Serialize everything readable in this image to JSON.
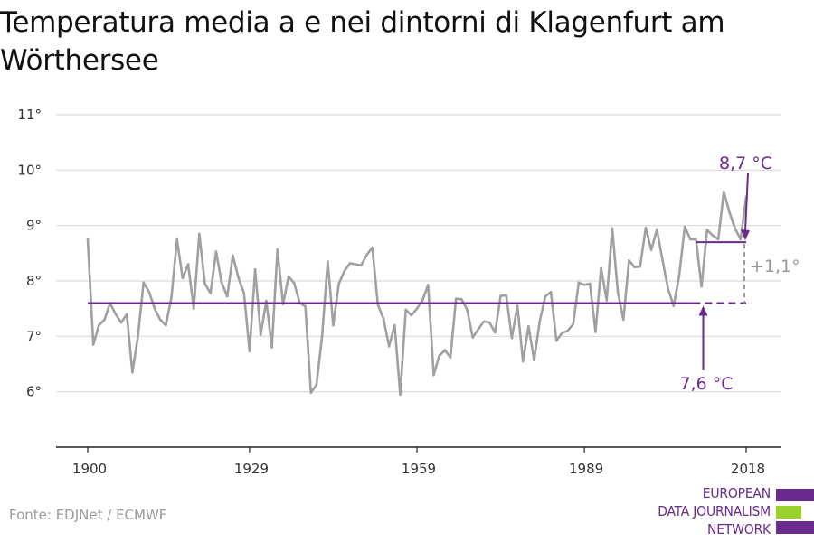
{
  "title": "Temperatura media a e nei dintorni di Klagenfurt am Wörthersee",
  "source": "Fonte: EDJNet / ECMWF",
  "logo": {
    "lines": [
      "EUROPEAN",
      "DATA JOURNALISM",
      "NETWORK"
    ],
    "colors": {
      "purple": "#6a2a8e",
      "green": "#9bd12c"
    }
  },
  "colors": {
    "series": "#a0a0a0",
    "baseline": "#6a2a8e",
    "delta": "#9a9a9a",
    "grid": "#d9d9d9"
  },
  "chart_data": {
    "type": "line",
    "x": [
      1900,
      1901,
      1902,
      1903,
      1904,
      1905,
      1906,
      1907,
      1908,
      1909,
      1910,
      1911,
      1912,
      1913,
      1914,
      1915,
      1916,
      1917,
      1918,
      1919,
      1920,
      1921,
      1922,
      1923,
      1924,
      1925,
      1926,
      1927,
      1928,
      1929,
      1930,
      1931,
      1932,
      1933,
      1934,
      1935,
      1936,
      1937,
      1938,
      1939,
      1940,
      1941,
      1942,
      1943,
      1944,
      1945,
      1946,
      1947,
      1948,
      1949,
      1950,
      1951,
      1952,
      1953,
      1954,
      1955,
      1956,
      1957,
      1958,
      1959,
      1960,
      1961,
      1962,
      1963,
      1964,
      1965,
      1966,
      1967,
      1968,
      1969,
      1970,
      1971,
      1972,
      1973,
      1974,
      1975,
      1976,
      1977,
      1978,
      1979,
      1980,
      1981,
      1982,
      1983,
      1984,
      1985,
      1986,
      1987,
      1988,
      1989,
      1990,
      1991,
      1992,
      1993,
      1994,
      1995,
      1996,
      1997,
      1998,
      1999,
      2000,
      2001,
      2002,
      2003,
      2004,
      2005,
      2006,
      2007,
      2008,
      2009,
      2010,
      2011,
      2012,
      2013,
      2014,
      2015,
      2016,
      2017,
      2018
    ],
    "series": [
      {
        "values": [
          8.75,
          6.85,
          7.2,
          7.3,
          7.6,
          7.4,
          7.25,
          7.4,
          6.35,
          7.0,
          7.97,
          7.8,
          7.5,
          7.3,
          7.2,
          7.7,
          8.75,
          8.05,
          8.3,
          7.5,
          8.85,
          7.95,
          7.78,
          8.53,
          7.97,
          7.72,
          8.46,
          8.06,
          7.78,
          6.73,
          8.21,
          7.03,
          7.64,
          6.8,
          8.57,
          7.58,
          8.08,
          7.96,
          7.6,
          7.54,
          5.98,
          6.13,
          7.0,
          8.35,
          7.2,
          7.95,
          8.18,
          8.32,
          8.3,
          8.28,
          8.47,
          8.6,
          7.57,
          7.32,
          6.82,
          7.2,
          5.95,
          7.48,
          7.38,
          7.5,
          7.65,
          7.93,
          6.3,
          6.65,
          6.75,
          6.62,
          7.68,
          7.67,
          7.48,
          6.98,
          7.13,
          7.27,
          7.25,
          7.07,
          7.73,
          7.74,
          6.97,
          7.55,
          6.55,
          7.18,
          6.57,
          7.27,
          7.72,
          7.8,
          6.92,
          7.06,
          7.1,
          7.22,
          7.97,
          7.93,
          7.95,
          7.08,
          8.23,
          7.65,
          8.95,
          7.8,
          7.3,
          8.37,
          8.25,
          8.26,
          8.96,
          8.56,
          8.93,
          8.38,
          7.86,
          7.55,
          8.1,
          8.98,
          8.75,
          8.75,
          7.9,
          8.92,
          8.82,
          8.75,
          9.61,
          9.24,
          8.95,
          8.75,
          9.52
        ]
      }
    ],
    "baseline": {
      "label": "7,6 °C",
      "value": 7.6
    },
    "recent": {
      "label": "8,7 °C",
      "value": 8.7
    },
    "delta_label": "+1,1°",
    "y_ticks": [
      6,
      7,
      8,
      9,
      10,
      11
    ],
    "y_tick_labels": [
      "6°",
      "7°",
      "8°",
      "9°",
      "10°",
      "11°"
    ],
    "x_ticks": [
      1900,
      1929,
      1959,
      1989,
      2018
    ],
    "x_tick_labels": [
      "1900",
      "1929",
      "1959",
      "1989",
      "2018"
    ],
    "ylim": [
      5.0,
      11.0
    ],
    "xlim": [
      1900,
      2018
    ],
    "grid": true
  }
}
